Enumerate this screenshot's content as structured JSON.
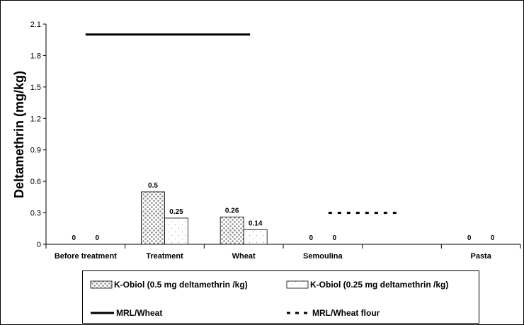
{
  "chart_data": {
    "type": "bar",
    "title": "",
    "xlabel": "",
    "ylabel": "Deltamethrin (mg/kg)",
    "ylim": [
      0,
      2.1
    ],
    "yticks": [
      "0",
      "0.3",
      "0.6",
      "0.9",
      "1.2",
      "1.5",
      "1.8",
      "2.1"
    ],
    "ytick_values": [
      0,
      0.3,
      0.6,
      0.9,
      1.2,
      1.5,
      1.8,
      2.1
    ],
    "categories": [
      "Before treatment",
      "Treatment",
      "Wheat",
      "Semoulina",
      "",
      "Pasta"
    ],
    "series": [
      {
        "name": "K-Obiol (0.5 mg deltamethrin /kg)",
        "values": [
          0,
          0.5,
          0.26,
          0,
          null,
          0
        ],
        "labels": [
          "0",
          "0.5",
          "0.26",
          "0",
          "",
          "0"
        ],
        "pattern": "dots-dense"
      },
      {
        "name": "K-Obiol (0.25 mg deltamethrin /kg)",
        "values": [
          0,
          0.25,
          0.14,
          0,
          null,
          0
        ],
        "labels": [
          "0",
          "0.25",
          "0.14",
          "0",
          "",
          "0"
        ],
        "pattern": "dots-sparse"
      }
    ],
    "reference_lines": [
      {
        "name": "MRL/Wheat",
        "value": 2.0,
        "from_category": 0,
        "to_category": 2,
        "style": "solid"
      },
      {
        "name": "MRL/Wheat flour",
        "value": 0.3,
        "from_category": 3,
        "to_category": 4,
        "style": "dashed"
      }
    ],
    "grid": false,
    "legend_position": "bottom"
  }
}
